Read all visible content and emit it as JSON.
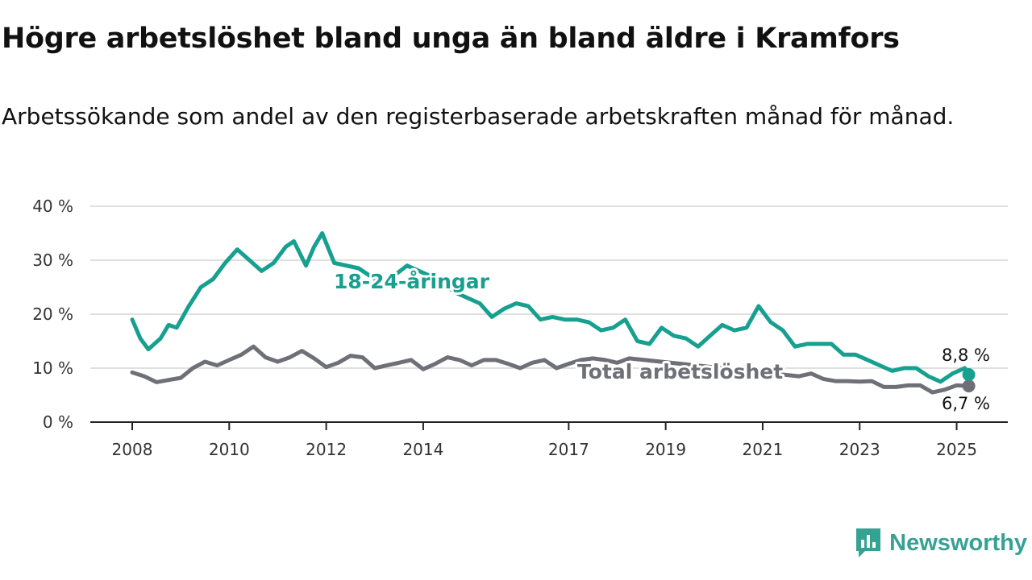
{
  "title": "Högre arbetslöshet bland unga än bland äldre i Kramfors",
  "subtitle": "Arbetssökande som andel av den registerbaserade arbetskraften månad för månad.",
  "brand": {
    "name": "Newsworthy",
    "logo_icon": "bar-chart-speech-bubble-icon"
  },
  "chart_data": {
    "type": "line",
    "ylim": [
      0,
      40
    ],
    "y_ticks": [
      "0 %",
      "10 %",
      "20 %",
      "30 %",
      "40 %"
    ],
    "x_ticks": [
      "2008",
      "2010",
      "2012",
      "2014",
      "2017",
      "2019",
      "2021",
      "2023",
      "2025"
    ],
    "grid": true,
    "series": [
      {
        "name": "18-24-åringar",
        "color": "#17a08f",
        "end_label": "8,8 %",
        "points": [
          [
            "2008-01",
            19.0
          ],
          [
            "2008-03",
            15.5
          ],
          [
            "2008-05",
            13.5
          ],
          [
            "2008-08",
            15.5
          ],
          [
            "2008-10",
            18.0
          ],
          [
            "2008-12",
            17.5
          ],
          [
            "2009-03",
            21.5
          ],
          [
            "2009-06",
            25.0
          ],
          [
            "2009-09",
            26.5
          ],
          [
            "2009-12",
            29.5
          ],
          [
            "2010-03",
            32.0
          ],
          [
            "2010-06",
            30.0
          ],
          [
            "2010-09",
            28.0
          ],
          [
            "2010-12",
            29.5
          ],
          [
            "2011-03",
            32.5
          ],
          [
            "2011-05",
            33.5
          ],
          [
            "2011-08",
            29.0
          ],
          [
            "2011-10",
            32.5
          ],
          [
            "2011-12",
            35.0
          ],
          [
            "2012-03",
            29.5
          ],
          [
            "2012-09",
            28.5
          ],
          [
            "2013-03",
            25.5
          ],
          [
            "2013-09",
            29.0
          ],
          [
            "2014-03",
            27.0
          ],
          [
            "2014-09",
            24.0
          ],
          [
            "2015-03",
            22.0
          ],
          [
            "2015-06",
            19.5
          ],
          [
            "2015-09",
            21.0
          ],
          [
            "2015-12",
            22.0
          ],
          [
            "2016-03",
            21.5
          ],
          [
            "2016-06",
            19.0
          ],
          [
            "2016-09",
            19.5
          ],
          [
            "2016-12",
            19.0
          ],
          [
            "2017-03",
            19.0
          ],
          [
            "2017-06",
            18.5
          ],
          [
            "2017-09",
            17.0
          ],
          [
            "2017-12",
            17.5
          ],
          [
            "2018-03",
            19.0
          ],
          [
            "2018-06",
            15.0
          ],
          [
            "2018-09",
            14.5
          ],
          [
            "2018-12",
            17.5
          ],
          [
            "2019-03",
            16.0
          ],
          [
            "2019-06",
            15.5
          ],
          [
            "2019-09",
            14.0
          ],
          [
            "2019-12",
            16.0
          ],
          [
            "2020-03",
            18.0
          ],
          [
            "2020-06",
            17.0
          ],
          [
            "2020-09",
            17.5
          ],
          [
            "2020-12",
            21.5
          ],
          [
            "2021-03",
            18.5
          ],
          [
            "2021-06",
            17.0
          ],
          [
            "2021-09",
            14.0
          ],
          [
            "2021-12",
            14.5
          ],
          [
            "2022-03",
            14.5
          ],
          [
            "2022-06",
            14.5
          ],
          [
            "2022-09",
            12.5
          ],
          [
            "2022-12",
            12.5
          ],
          [
            "2023-03",
            11.5
          ],
          [
            "2023-06",
            10.5
          ],
          [
            "2023-09",
            9.5
          ],
          [
            "2023-12",
            10.0
          ],
          [
            "2024-03",
            10.0
          ],
          [
            "2024-06",
            8.5
          ],
          [
            "2024-09",
            7.5
          ],
          [
            "2024-12",
            9.0
          ],
          [
            "2025-03",
            10.0
          ],
          [
            "2025-04",
            8.8
          ]
        ]
      },
      {
        "name": "Total arbetslöshet",
        "color": "#6f6f78",
        "end_label": "6,7 %",
        "points": [
          [
            "2008-01",
            9.2
          ],
          [
            "2008-04",
            8.5
          ],
          [
            "2008-07",
            7.4
          ],
          [
            "2008-10",
            7.8
          ],
          [
            "2009-01",
            8.2
          ],
          [
            "2009-04",
            10.0
          ],
          [
            "2009-07",
            11.2
          ],
          [
            "2009-10",
            10.5
          ],
          [
            "2010-01",
            11.5
          ],
          [
            "2010-04",
            12.5
          ],
          [
            "2010-07",
            14.0
          ],
          [
            "2010-10",
            12.0
          ],
          [
            "2011-01",
            11.2
          ],
          [
            "2011-04",
            12.0
          ],
          [
            "2011-07",
            13.2
          ],
          [
            "2011-10",
            11.8
          ],
          [
            "2012-01",
            10.2
          ],
          [
            "2012-04",
            11.0
          ],
          [
            "2012-07",
            12.3
          ],
          [
            "2012-10",
            12.0
          ],
          [
            "2013-01",
            10.0
          ],
          [
            "2013-04",
            10.5
          ],
          [
            "2013-07",
            11.0
          ],
          [
            "2013-10",
            11.5
          ],
          [
            "2014-01",
            9.8
          ],
          [
            "2014-04",
            10.8
          ],
          [
            "2014-07",
            12.0
          ],
          [
            "2014-10",
            11.5
          ],
          [
            "2015-01",
            10.5
          ],
          [
            "2015-04",
            11.5
          ],
          [
            "2015-07",
            11.5
          ],
          [
            "2015-10",
            10.8
          ],
          [
            "2016-01",
            10.0
          ],
          [
            "2016-04",
            11.0
          ],
          [
            "2016-07",
            11.5
          ],
          [
            "2016-10",
            10.0
          ],
          [
            "2017-01",
            10.8
          ],
          [
            "2017-04",
            11.5
          ],
          [
            "2017-07",
            11.8
          ],
          [
            "2017-10",
            11.5
          ],
          [
            "2018-01",
            11.0
          ],
          [
            "2018-04",
            11.8
          ],
          [
            "2021-10",
            8.5
          ],
          [
            "2022-01",
            9.0
          ],
          [
            "2022-04",
            8.0
          ],
          [
            "2022-07",
            7.6
          ],
          [
            "2022-10",
            7.6
          ],
          [
            "2023-01",
            7.5
          ],
          [
            "2023-04",
            7.6
          ],
          [
            "2023-07",
            6.5
          ],
          [
            "2023-10",
            6.5
          ],
          [
            "2024-01",
            6.8
          ],
          [
            "2024-04",
            6.8
          ],
          [
            "2024-07",
            5.5
          ],
          [
            "2024-10",
            6.0
          ],
          [
            "2025-01",
            6.8
          ],
          [
            "2025-04",
            6.7
          ]
        ]
      }
    ]
  }
}
